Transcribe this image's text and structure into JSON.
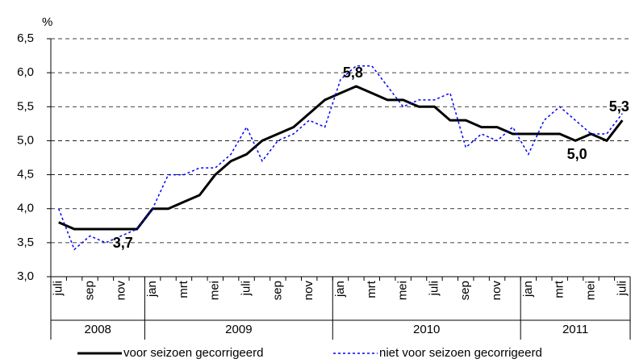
{
  "chart_data": {
    "type": "line",
    "y_label": "%",
    "categories": [
      "juli",
      null,
      "sep",
      null,
      "nov",
      null,
      "jan",
      null,
      "mrt",
      null,
      "mei",
      null,
      "juli",
      null,
      "sep",
      null,
      "nov",
      null,
      "jan",
      null,
      "mrt",
      null,
      "mei",
      null,
      "juli",
      null,
      "sep",
      null,
      "nov",
      null,
      "jan",
      null,
      "mrt",
      null,
      "mei",
      null,
      "juli"
    ],
    "year_groups": [
      {
        "label": "2008",
        "span": 6
      },
      {
        "label": "2009",
        "span": 12
      },
      {
        "label": "2010",
        "span": 12
      },
      {
        "label": "2011",
        "span": 7
      }
    ],
    "series": [
      {
        "name": "voor seizoen gecorrigeerd",
        "color": "#000000",
        "style": "solid",
        "values": [
          3.8,
          3.7,
          3.7,
          3.7,
          3.7,
          3.7,
          4.0,
          4.0,
          4.1,
          4.2,
          4.5,
          4.7,
          4.8,
          5.0,
          5.1,
          5.2,
          5.4,
          5.6,
          5.7,
          5.8,
          5.7,
          5.6,
          5.6,
          5.5,
          5.5,
          5.3,
          5.3,
          5.2,
          5.2,
          5.1,
          5.1,
          5.1,
          5.1,
          5.0,
          5.1,
          5.0,
          5.3
        ],
        "value_labels": [
          null,
          null,
          null,
          null,
          "3,7",
          null,
          null,
          null,
          null,
          null,
          null,
          null,
          null,
          null,
          null,
          null,
          null,
          null,
          null,
          "5,8",
          null,
          null,
          null,
          null,
          null,
          null,
          null,
          null,
          null,
          null,
          null,
          null,
          null,
          "5,0",
          null,
          null,
          "5,3"
        ]
      },
      {
        "name": "niet voor seizoen gecorrigeerd",
        "color": "#0000ff",
        "style": "dotted",
        "values": [
          4.0,
          3.4,
          3.6,
          3.5,
          3.6,
          3.7,
          4.0,
          4.5,
          4.5,
          4.6,
          4.6,
          4.8,
          5.2,
          4.7,
          5.0,
          5.1,
          5.3,
          5.2,
          5.9,
          6.1,
          6.1,
          5.8,
          5.5,
          5.6,
          5.6,
          5.7,
          4.9,
          5.1,
          5.0,
          5.2,
          4.8,
          5.3,
          5.5,
          5.3,
          5.1,
          5.1,
          5.4
        ]
      }
    ],
    "ylim": [
      3.0,
      6.5
    ],
    "yticks": [
      {
        "value": 3.0,
        "label": "3,0"
      },
      {
        "value": 3.5,
        "label": "3,5"
      },
      {
        "value": 4.0,
        "label": "4,0"
      },
      {
        "value": 4.5,
        "label": "4,5"
      },
      {
        "value": 5.0,
        "label": "5,0"
      },
      {
        "value": 5.5,
        "label": "5,5"
      },
      {
        "value": 6.0,
        "label": "6,0"
      },
      {
        "value": 6.5,
        "label": "6,5"
      }
    ],
    "grid": true,
    "legend": "bottom"
  }
}
